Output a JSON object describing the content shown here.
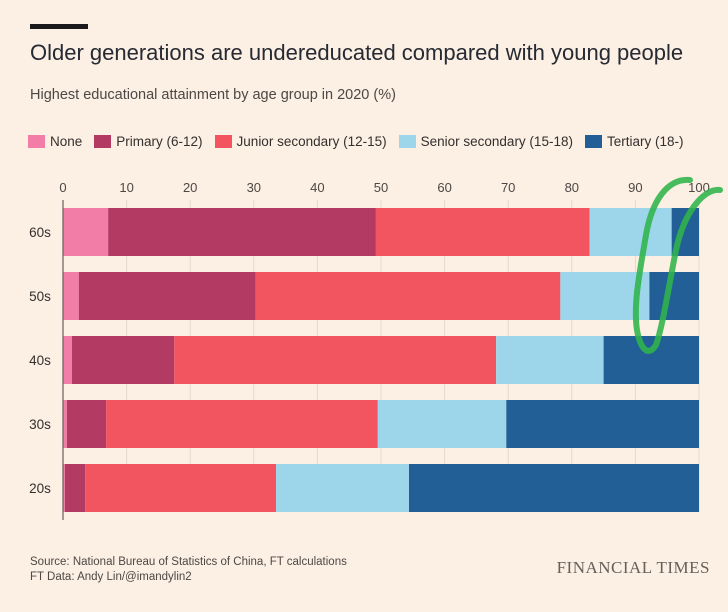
{
  "header": {
    "title": "Older generations are undereducated compared with young people",
    "subtitle": "Highest educational attainment by age group in 2020 (%)"
  },
  "footer": {
    "source_line": "Source: National Bureau of Statistics of China, FT calculations",
    "credit_line": "FT Data: Andy Lin/@imandylin2",
    "brand": "FINANCIAL TIMES"
  },
  "colors": {
    "background": "#fcefe3",
    "gridline": "#e6d9ce",
    "axis": "#66605c",
    "annotation": "#2fb54a"
  },
  "chart_data": {
    "type": "bar",
    "orientation": "horizontal",
    "stacked": true,
    "title": "Older generations are undereducated compared with young people",
    "subtitle": "Highest educational attainment by age group in 2020 (%)",
    "xlabel": "",
    "ylabel": "",
    "xlim": [
      0,
      100
    ],
    "xticks": [
      0,
      10,
      20,
      30,
      40,
      50,
      60,
      70,
      80,
      90,
      100
    ],
    "x_axis_position": "top",
    "grid": true,
    "legend_position": "top",
    "categories": [
      "60s",
      "50s",
      "40s",
      "30s",
      "20s"
    ],
    "series": [
      {
        "name": "None",
        "color": "#f27da6",
        "values": [
          7.1,
          2.5,
          1.4,
          0.6,
          0.3
        ]
      },
      {
        "name": "Primary (6-12)",
        "color": "#b23a63",
        "values": [
          42.1,
          27.8,
          16.1,
          6.2,
          3.2
        ]
      },
      {
        "name": "Junior secondary (12-15)",
        "color": "#f2555f",
        "values": [
          33.6,
          47.9,
          50.6,
          42.7,
          30.0
        ]
      },
      {
        "name": "Senior secondary (15-18)",
        "color": "#9dd6ea",
        "values": [
          12.9,
          14.0,
          16.9,
          20.2,
          20.9
        ]
      },
      {
        "name": "Tertiary (18-)",
        "color": "#225f97",
        "values": [
          4.3,
          7.8,
          15.0,
          30.3,
          45.6
        ]
      }
    ]
  }
}
